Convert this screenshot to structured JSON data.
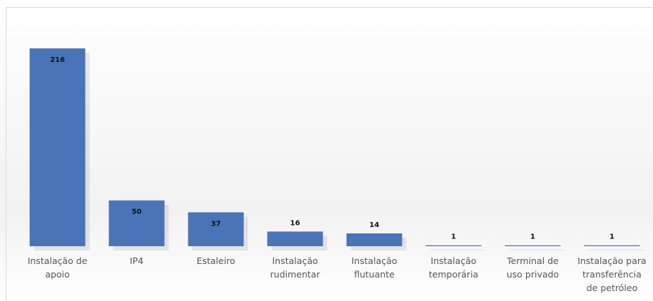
{
  "chart_data": {
    "type": "bar",
    "categories": [
      "Instalação de\napoio",
      "IP4",
      "Estaleiro",
      "Instalação\nrudimentar",
      "Instalação\nflutuante",
      "Instalação\ntemporária",
      "Terminal de\nuso privado",
      "Instalação para\ntransferência\nde petróleo"
    ],
    "values": [
      216,
      50,
      37,
      16,
      14,
      1,
      1,
      1
    ],
    "color": "#4a74b8"
  }
}
